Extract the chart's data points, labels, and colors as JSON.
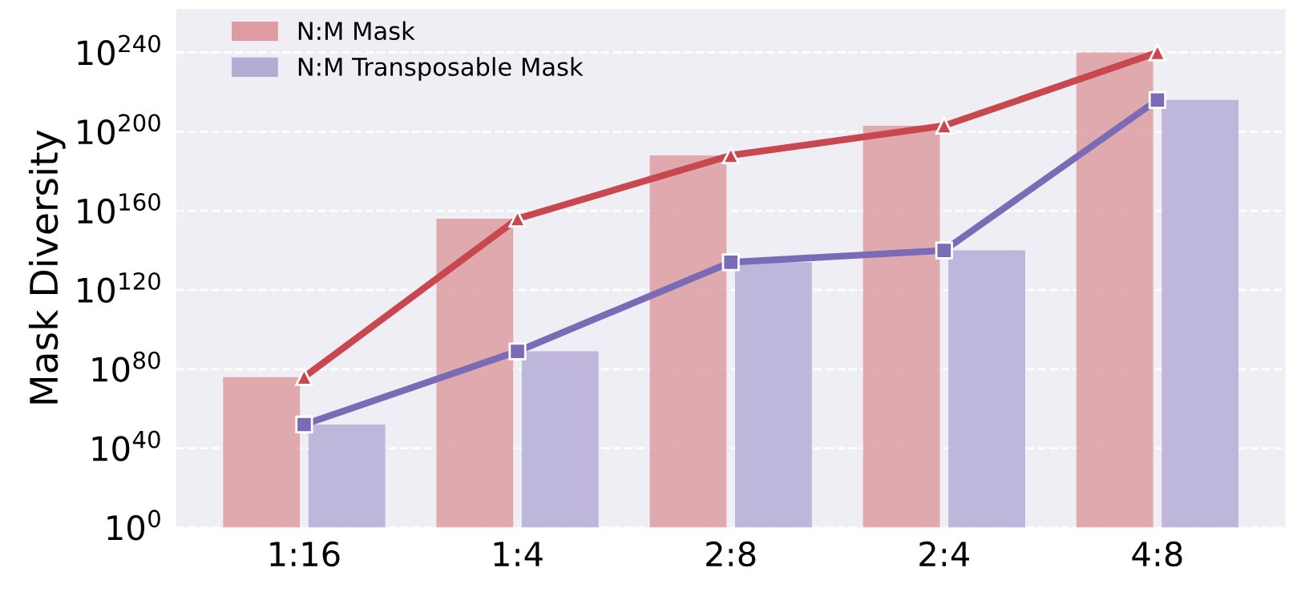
{
  "chart_data": {
    "type": "bar",
    "ylabel": "Mask Diversity",
    "categories": [
      "1:16",
      "1:4",
      "2:8",
      "2:4",
      "4:8"
    ],
    "series": [
      {
        "name": "N:M Mask",
        "color": "#dc9ca1",
        "values": [
          1e+76,
          1e+156,
          1e+188,
          1e+203,
          1e+240
        ]
      },
      {
        "name": "N:M Transposable Mask",
        "color": "#b5acd6",
        "values": [
          1e+52,
          1e+89,
          1e+134,
          1e+140,
          1e+216
        ]
      },
      {
        "type": "line",
        "color": "#c9474e",
        "marker": "triangle",
        "values": [
          1e+76,
          1e+156,
          1e+188,
          1e+203,
          1e+240
        ]
      },
      {
        "type": "line",
        "color": "#7a6bb6",
        "marker": "square",
        "values": [
          1e+52,
          1e+89,
          1e+134,
          1e+140,
          1e+216
        ]
      }
    ],
    "log": "y",
    "ylim": [
      1,
      1e+262
    ],
    "yticks": [
      {
        "value": 1,
        "label": "10$^{0}$"
      },
      {
        "value": 1e+40,
        "label": "10$^{40}$"
      },
      {
        "value": 1e+80,
        "label": "10$^{80}$"
      },
      {
        "value": 1e+120,
        "label": "10$^{120}$"
      },
      {
        "value": 1e+160,
        "label": "10$^{160}$"
      },
      {
        "value": 1e+200,
        "label": "10$^{200}$"
      },
      {
        "value": 1e+240,
        "label": "10$^{240}$"
      }
    ],
    "grid": "y",
    "legend": "top left",
    "line_style": "solid"
  }
}
